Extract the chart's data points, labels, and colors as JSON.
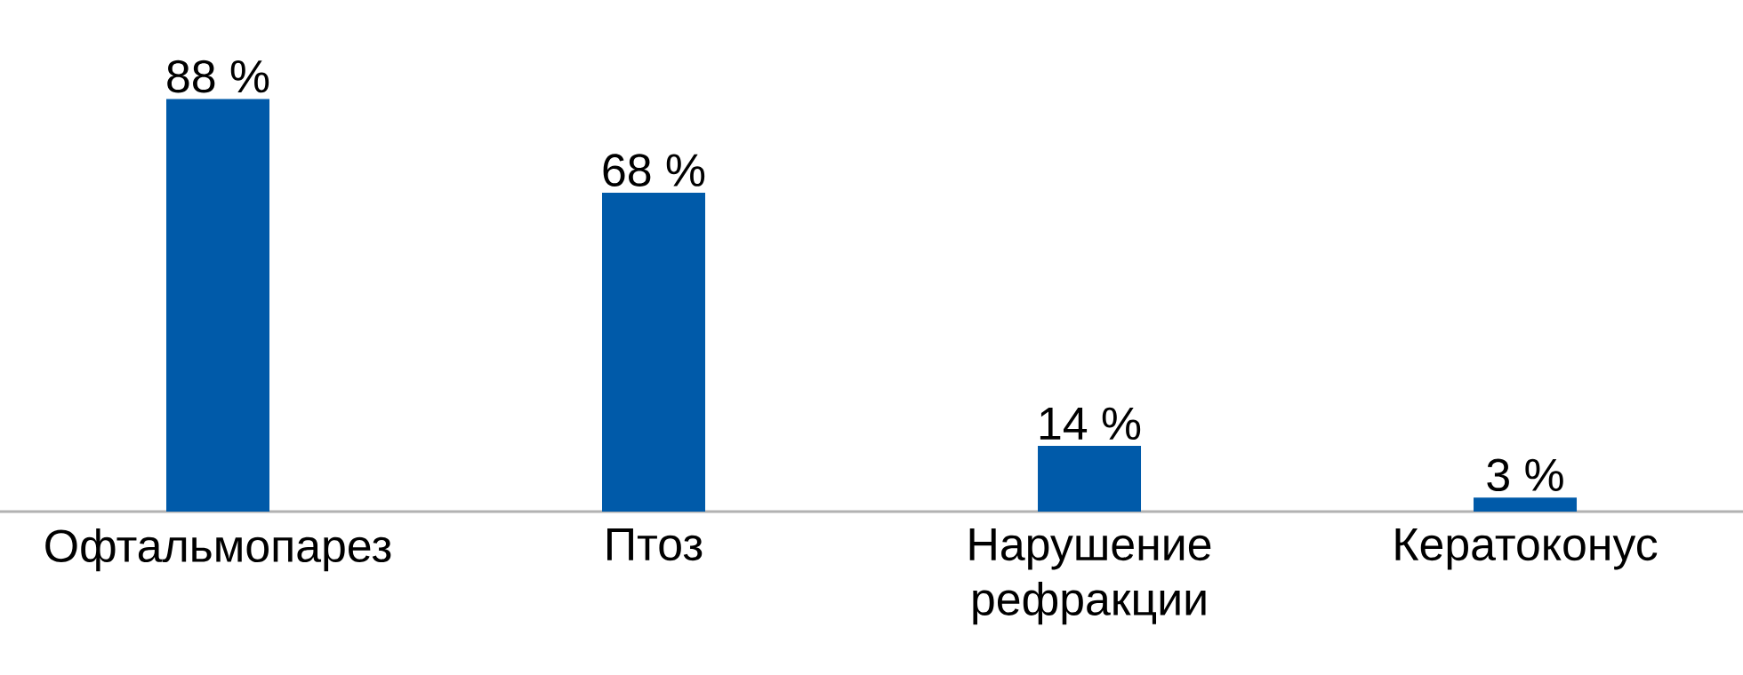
{
  "chart_data": {
    "type": "bar",
    "categories": [
      "Офтальмопарез",
      "Птоз",
      "Нарушение рефракции",
      "Кератоконус"
    ],
    "values": [
      88,
      68,
      14,
      3
    ],
    "value_labels": [
      "88 %",
      "68 %",
      "14 %",
      "3 %"
    ],
    "color": "#005aa9"
  }
}
